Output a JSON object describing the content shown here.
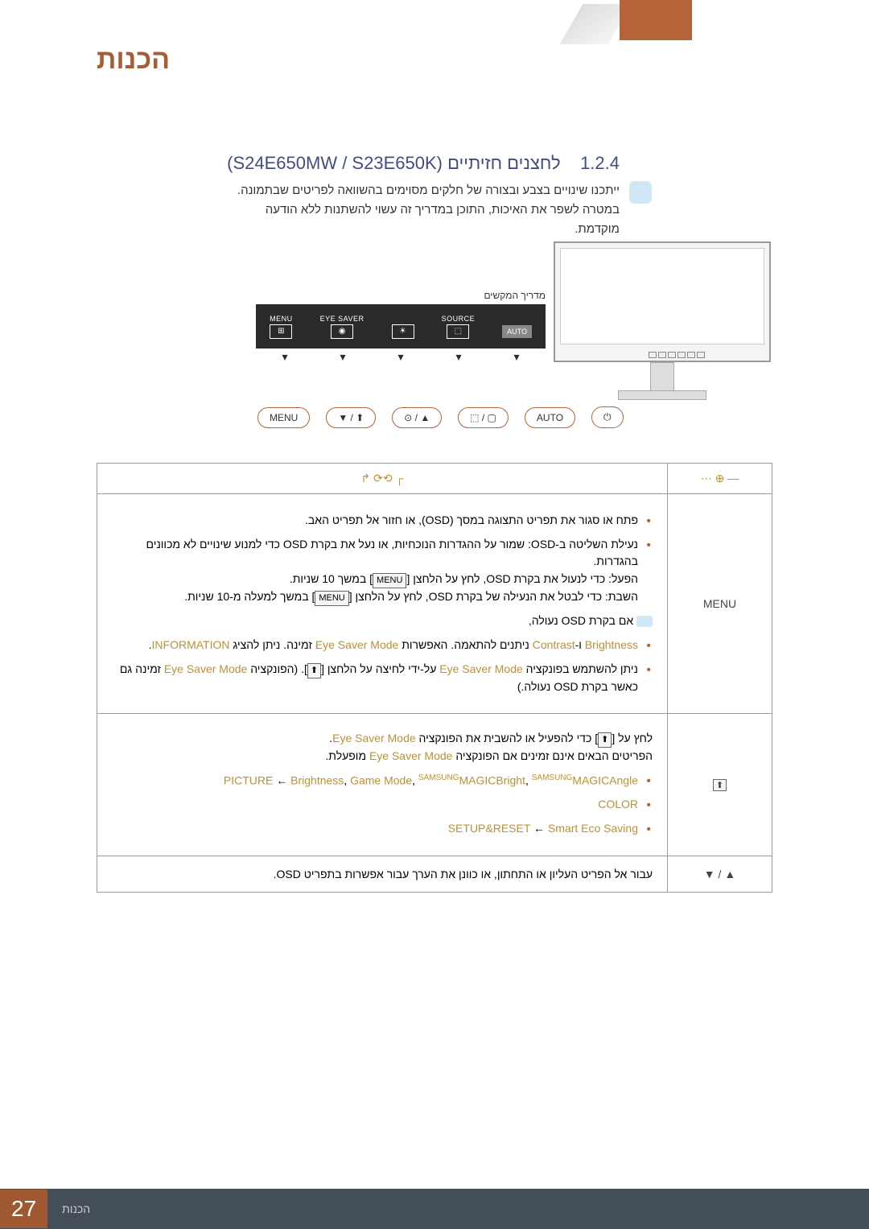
{
  "chapter_title": "הכנות",
  "section": {
    "number": "1.2.4",
    "title": "לחצנים חזיתיים",
    "models": "(S24E650MW / S23E650K)"
  },
  "note_text": "ייתכנו שינויים בצבע ובצורה של חלקים מסוימים בהשוואה לפריטים שבתמונה. במטרה לשפר את האיכות, התוכן במדריך זה עשוי להשתנות ללא הודעה מוקדמת.",
  "key_guide": {
    "title": "מדריך המקשים",
    "items": [
      "MENU",
      "EYE SAVER",
      "",
      "SOURCE",
      "AUTO"
    ],
    "icon_labels": [
      "⊞",
      "👁",
      "☀",
      "⬚",
      ""
    ]
  },
  "button_row": [
    "MENU",
    "⬆ / ▼",
    "▲ / ⊙",
    "▢ / ⬚",
    "AUTO",
    "⏻"
  ],
  "table": {
    "header_icons_left": "┌ ⟲⟳ ↱",
    "header_icons_right": "— ⊕ ⋯",
    "button_texts": {
      "menu": "MENU"
    },
    "rows": [
      {
        "icon": "MENU",
        "content": {
          "bullets": [
            "פתח או סגור את תפריט התצוגה במסך (OSD), או חזור אל תפריט האב.",
            "נעילת השליטה ב-OSD: שמור על ההגדרות הנוכחיות, או נעל את בקרת OSD כדי למנוע שינויים לא מכוונים בהגדרות.\nהפעל: כדי לנעול את בקרת OSD, לחץ על הלחצן [MENU] במשך 10 שניות.\nהשבת: כדי לבטל את הנעילה של בקרת OSD, לחץ על הלחצן [MENU] במשך למעלה מ-10 שניות."
          ],
          "note": "אם בקרת OSD נעולה,",
          "sub_bullets": [
            "Brightness ו-Contrast ניתנים להתאמה. האפשרות Eye Saver Mode זמינה. ניתן להציג INFORMATION.",
            "ניתן להשתמש בפונקציה Eye Saver Mode על-ידי לחיצה על הלחצן [⬆]. (הפונקציה Eye Saver Mode זמינה גם כאשר בקרת OSD נעולה.)"
          ],
          "highlights": [
            "Brightness",
            "Contrast",
            "Eye Saver Mode",
            "INFORMATION",
            "Eye Saver Mode",
            "Eye Saver Mode"
          ]
        }
      },
      {
        "icon": "⬆",
        "content": {
          "intro": "לחץ על [⬆] כדי להפעיל או להשבית את הפונקציה Eye Saver Mode.\nהפריטים הבאים אינם זמינים אם הפונקציה Eye Saver Mode מופעלת.",
          "bullets_hl": [
            "PICTURE ← Brightness, Game Mode, ᴹᴬᴳᴵᶜBright, ᴹᴬᴳᴵᶜAngle",
            "COLOR",
            "SETUP&RESET ← Smart Eco Saving"
          ]
        }
      },
      {
        "icon": "▲ / ▼",
        "content": {
          "text": "עבור אל הפריט העליון או התחתון, או כוונן את הערך עבור אפשרות בתפריט OSD."
        }
      }
    ]
  },
  "footer": {
    "page_number": "27",
    "text": "הכנות"
  },
  "colors": {
    "accent": "#b5643a",
    "heading": "#3f4d87",
    "hl": "#c09030",
    "footer_bg": "#444e58",
    "note_bg": "#cfe8f5"
  }
}
